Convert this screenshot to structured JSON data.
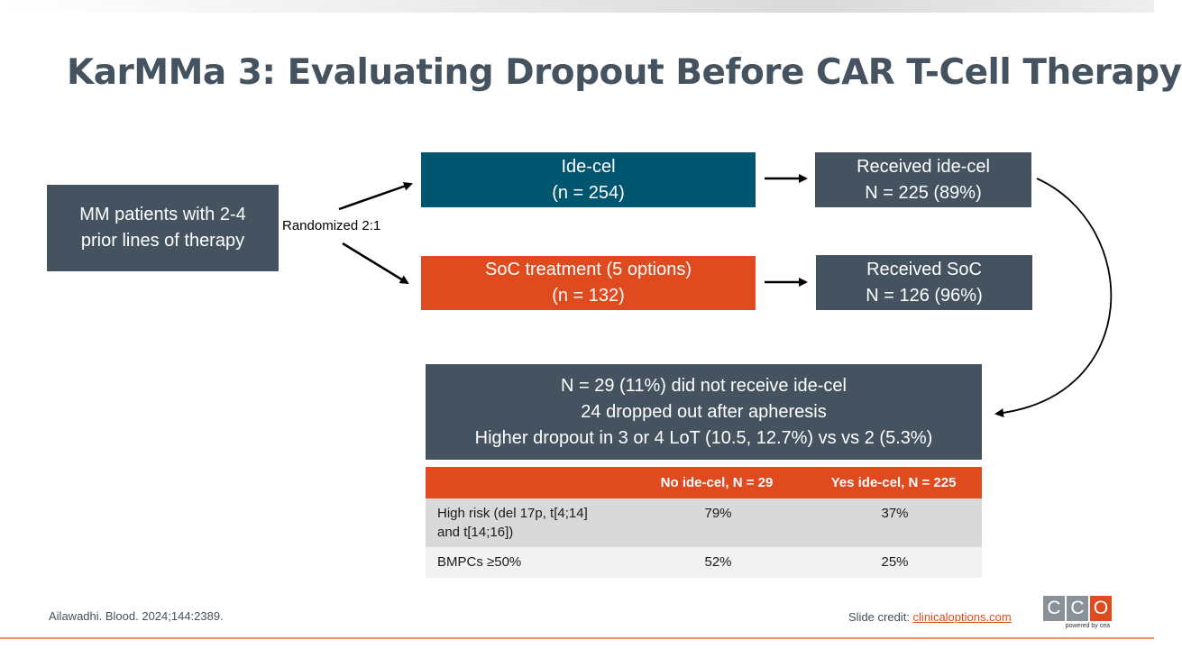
{
  "title": "KarMMa 3: Evaluating Dropout Before CAR T-Cell Therapy",
  "flow": {
    "patients": {
      "line1": "MM patients with 2-4",
      "line2": "prior lines of therapy"
    },
    "randomized_label": "Randomized 2:1",
    "idecel_arm": {
      "line1": "Ide-cel",
      "line2": "(n = 254)"
    },
    "soc_arm": {
      "line1": "SoC treatment (5 options)",
      "line2": "(n = 132)"
    },
    "received_idecel": {
      "line1": "Received ide-cel",
      "line2": "N = 225 (89%)"
    },
    "received_soc": {
      "line1": "Received SoC",
      "line2": "N = 126 (96%)"
    },
    "dropout": {
      "line1": "N = 29 (11%) did not receive ide-cel",
      "line2": "24 dropped out after apheresis",
      "line3": "Higher dropout in 3 or 4 LoT (10.5, 12.7%) vs vs 2 (5.3%)"
    }
  },
  "table": {
    "headers": [
      "",
      "No ide-cel, N = 29",
      "Yes ide-cel, N = 225"
    ],
    "rows": [
      {
        "label_line1": "High risk (del 17p, t[4;14]",
        "label_line2": "and t[14;16])",
        "no": "79%",
        "yes": "37%"
      },
      {
        "label": "BMPCs ≥50%",
        "no": "52%",
        "yes": "25%"
      }
    ]
  },
  "footer": {
    "citation": "Ailawadhi. Blood. 2024;144:2389.",
    "credit_label": "Slide credit: ",
    "credit_link": "clinicaloptions.com",
    "logo_letters": [
      "C",
      "C",
      "O"
    ],
    "logo_sub": "powered by cea"
  },
  "colors": {
    "slate": "#44535f",
    "teal": "#00566f",
    "orange": "#e04a1f"
  }
}
